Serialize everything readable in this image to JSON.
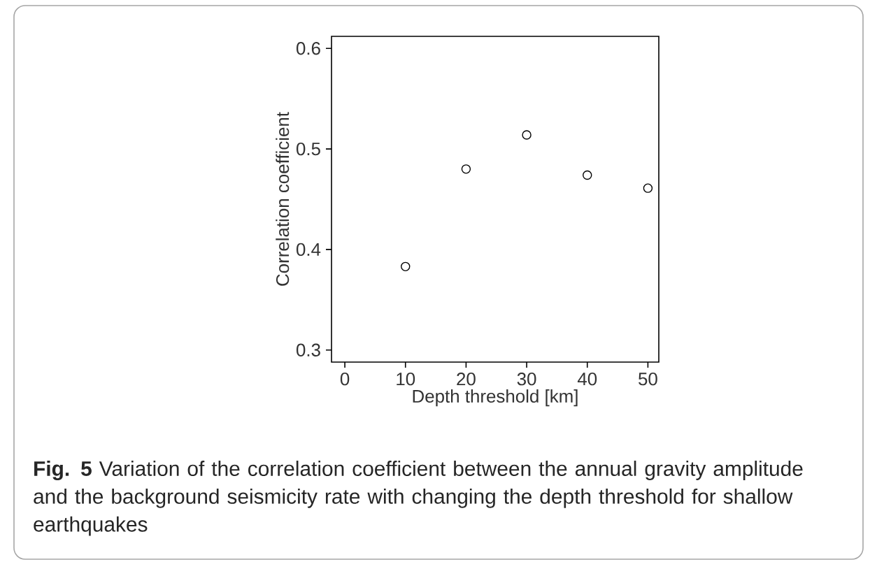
{
  "chart_data": {
    "type": "scatter",
    "xlabel": "Depth threshold [km]",
    "ylabel": "Correlation coefficient",
    "x": [
      10,
      20,
      30,
      40,
      50
    ],
    "values": [
      0.383,
      0.48,
      0.514,
      0.474,
      0.461
    ],
    "color": "#000000",
    "marker": "circle",
    "xlim": [
      -2.2,
      51.8
    ],
    "ylim": [
      0.288,
      0.612
    ],
    "xticks": [
      0,
      10,
      20,
      30,
      40,
      50
    ],
    "yticks": [
      0.3,
      0.4,
      0.5,
      0.6
    ],
    "grid": false,
    "annotations": [
      "**Fig. 5**  Variation of the correlation coefficient between the annual gravity amplitude and the background seismicity rate with changing the depth threshold for shallow earthquakes"
    ]
  }
}
